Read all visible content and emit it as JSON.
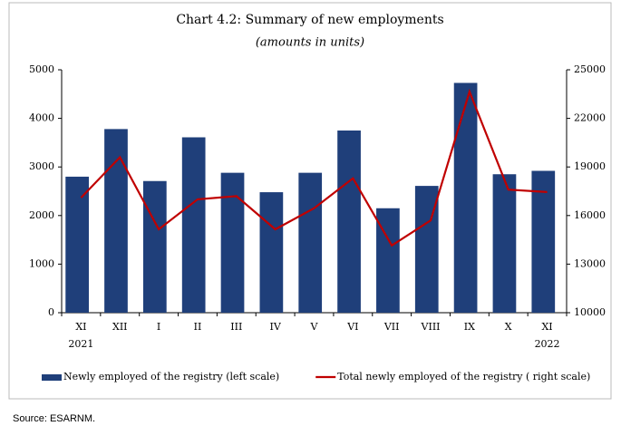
{
  "chart_data": {
    "type": "bar_line",
    "title": "Chart 4.2: Summary of new employments",
    "subtitle": "(amounts in units)",
    "categories": [
      "XI",
      "XII",
      "I",
      "II",
      "III",
      "IV",
      "V",
      "VI",
      "VII",
      "VIII",
      "IX",
      "X",
      "XI"
    ],
    "category_years": [
      "2021",
      null,
      null,
      null,
      null,
      null,
      null,
      null,
      null,
      null,
      null,
      null,
      "2022"
    ],
    "series": [
      {
        "name": "Newly employed of the registry (left scale)",
        "color": "#1f3f7a",
        "type": "bar",
        "values": [
          2800,
          3780,
          2710,
          3610,
          2880,
          2480,
          2880,
          3750,
          2150,
          2610,
          4730,
          2850,
          2920
        ]
      },
      {
        "name": "Total newly employed of the registry ( right scale)",
        "color": "#c00000",
        "type": "line",
        "axis": "y2",
        "values": [
          17100,
          19600,
          15150,
          17000,
          17200,
          15150,
          16450,
          18300,
          14150,
          15700,
          23650,
          17600,
          17450
        ]
      }
    ],
    "ylim": [
      0,
      5000
    ],
    "yticks": [
      0,
      1000,
      2000,
      3000,
      4000,
      5000
    ],
    "y2lim": [
      10000,
      25000
    ],
    "y2ticks": [
      10000,
      13000,
      16000,
      19000,
      22000,
      25000
    ],
    "source": "Source:  ESARNM."
  }
}
